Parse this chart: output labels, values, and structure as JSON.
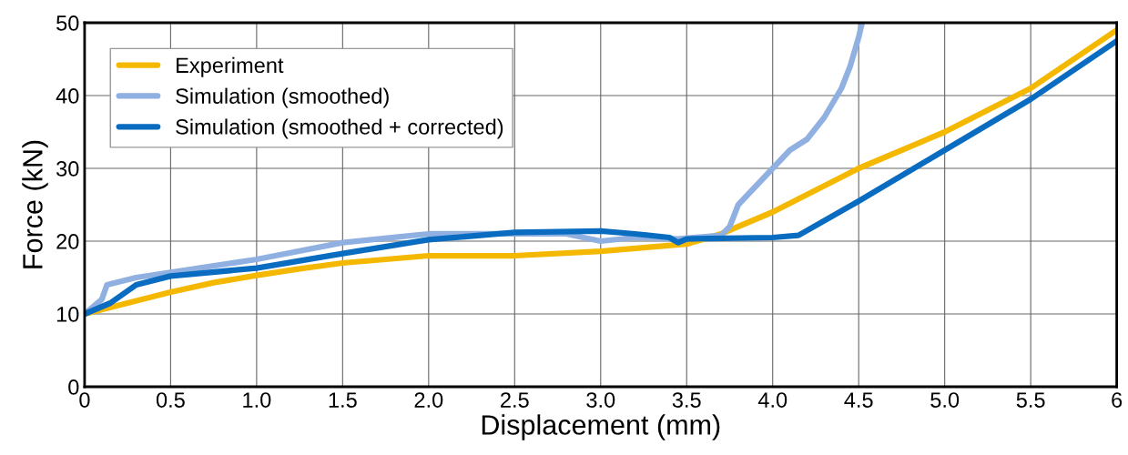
{
  "chart_data": {
    "type": "line",
    "xlabel": "Displacement (mm)",
    "ylabel": "Force (kN)",
    "xlim": [
      0,
      6
    ],
    "ylim": [
      0,
      50
    ],
    "xticks": [
      0,
      0.5,
      {
        "value": 1,
        "label": "1.0"
      },
      1.5,
      {
        "value": 2,
        "label": "2.0"
      },
      2.5,
      {
        "value": 3,
        "label": "3.0"
      },
      3.5,
      {
        "value": 4,
        "label": "4.0"
      },
      4.5,
      {
        "value": 5,
        "label": "5.0"
      },
      5.5,
      6
    ],
    "yticks": [
      0,
      10,
      20,
      30,
      40,
      50
    ],
    "grid": true,
    "legend": "top left",
    "marker": "none",
    "line_style": "solid",
    "series": [
      {
        "name": "Experiment",
        "color": "#f5b800",
        "x": [
          0,
          0.25,
          0.5,
          0.75,
          1.0,
          1.25,
          1.5,
          1.75,
          2.0,
          2.5,
          3.0,
          3.5,
          3.7,
          4.0,
          4.25,
          4.5,
          5.0,
          5.5,
          6.0
        ],
        "values": [
          10,
          11.5,
          13,
          14.3,
          15.3,
          16.2,
          17,
          17.5,
          18,
          18,
          18.6,
          19.6,
          21,
          24,
          27,
          30,
          35,
          41,
          49
        ]
      },
      {
        "name": "Simulation (smoothed)",
        "color": "#8fb0e0",
        "x": [
          0,
          0.1,
          0.13,
          0.3,
          0.5,
          1.0,
          1.5,
          2.0,
          2.5,
          2.8,
          3.0,
          3.2,
          3.45,
          3.7,
          3.75,
          3.8,
          3.9,
          4.0,
          4.1,
          4.2,
          4.3,
          4.4,
          4.45,
          4.5,
          4.52
        ],
        "values": [
          10,
          12,
          14,
          15,
          15.7,
          17.5,
          19.8,
          21,
          21,
          21,
          20,
          20.5,
          20.3,
          20.8,
          22,
          25,
          27.5,
          30,
          32.5,
          34,
          37,
          41,
          44,
          48,
          50
        ]
      },
      {
        "name": "Simulation (smoothed + corrected)",
        "color": "#0a6cc0",
        "x": [
          0,
          0.15,
          0.3,
          0.5,
          1.0,
          1.5,
          2.0,
          2.5,
          3.0,
          3.2,
          3.4,
          3.45,
          3.5,
          4.0,
          4.15,
          4.5,
          5.0,
          5.5,
          6.0
        ],
        "values": [
          10,
          11.5,
          14,
          15.2,
          16.3,
          18.3,
          20.2,
          21.2,
          21.4,
          21,
          20.5,
          19.8,
          20.3,
          20.5,
          20.8,
          25.5,
          32.5,
          39.5,
          47.5
        ]
      }
    ]
  }
}
